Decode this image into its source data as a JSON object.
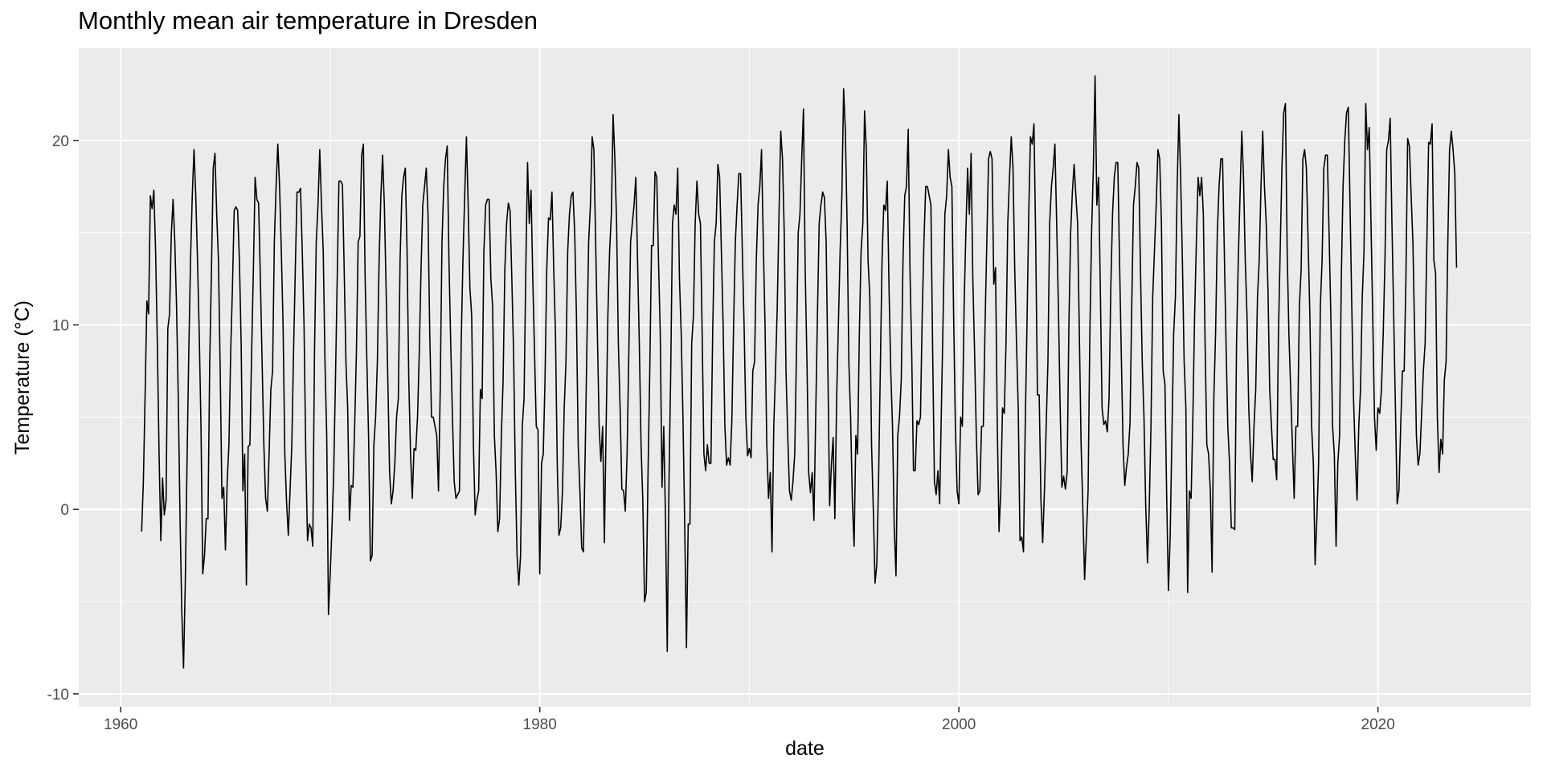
{
  "chart_data": {
    "type": "line",
    "title": "Monthly mean air temperature in Dresden",
    "xlabel": "date",
    "ylabel": "Temperature (°C)",
    "xlim": [
      1958.0,
      2027.3
    ],
    "ylim": [
      -10.7,
      25.0
    ],
    "grid": true,
    "background": "#ebebeb",
    "line_color": "#000000",
    "x_ticks": [
      {
        "value": 1960,
        "label": "1960"
      },
      {
        "value": 1980,
        "label": "1980"
      },
      {
        "value": 2000,
        "label": "2000"
      },
      {
        "value": 2020,
        "label": "2020"
      }
    ],
    "y_ticks": [
      {
        "value": -10,
        "label": "-10"
      },
      {
        "value": 0,
        "label": "0"
      },
      {
        "value": 10,
        "label": "10"
      },
      {
        "value": 20,
        "label": "20"
      }
    ],
    "series": [
      {
        "start_year": 1961,
        "start_month": 1,
        "values": [
          -1.2,
          1.5,
          6.2,
          11.3,
          10.6,
          17.0,
          16.3,
          17.3,
          14.0,
          9.0,
          3.0,
          -1.7,
          1.7,
          -0.3,
          0.5,
          9.8,
          10.6,
          14.9,
          16.8,
          14.5,
          11.0,
          6.0,
          -0.5,
          -5.5,
          -8.6,
          -4.0,
          2.5,
          8.5,
          13.5,
          17.0,
          19.5,
          17.0,
          13.5,
          9.5,
          4.5,
          -3.5,
          -2.5,
          -0.5,
          -0.5,
          8.0,
          13.0,
          18.5,
          19.3,
          16.0,
          13.5,
          7.5,
          0.6,
          1.2,
          -2.2,
          1.5,
          3.5,
          8.5,
          12.0,
          16.2,
          16.4,
          16.2,
          13.5,
          9.0,
          1.0,
          3.0,
          -4.1,
          3.4,
          3.5,
          8.5,
          13.0,
          18.0,
          16.8,
          16.6,
          12.5,
          8.0,
          3.5,
          0.6,
          -0.1,
          3.0,
          6.5,
          7.5,
          14.5,
          17.5,
          19.8,
          17.5,
          14.0,
          10.0,
          3.0,
          0.4,
          -1.4,
          1.0,
          3.5,
          8.5,
          13.0,
          17.2,
          17.2,
          17.4,
          14.0,
          10.0,
          3.0,
          -1.7,
          -0.8,
          -1.0,
          -2.0,
          8.5,
          14.5,
          16.5,
          19.5,
          16.5,
          14.0,
          8.0,
          4.0,
          -5.7,
          -3.5,
          -1.0,
          2.0,
          7.0,
          12.5,
          17.8,
          17.8,
          17.6,
          13.0,
          8.0,
          5.5,
          -0.6,
          1.3,
          1.2,
          4.5,
          8.5,
          14.5,
          14.8,
          19.2,
          19.8,
          12.5,
          8.0,
          3.8,
          -2.8,
          -2.5,
          3.5,
          5.0,
          8.0,
          13.5,
          17.0,
          19.2,
          16.5,
          12.0,
          7.0,
          2.0,
          0.3,
          1.0,
          2.5,
          5.0,
          6.0,
          13.5,
          17.0,
          18.0,
          18.5,
          14.0,
          7.0,
          3.0,
          0.6,
          3.3,
          3.2,
          5.0,
          8.5,
          13.0,
          16.5,
          17.5,
          18.5,
          16.0,
          9.5,
          5.0,
          5.0,
          4.5,
          4.0,
          1.0,
          6.5,
          14.5,
          17.5,
          19.0,
          19.7,
          13.5,
          9.0,
          5.0,
          1.5,
          0.6,
          0.8,
          1.0,
          9.0,
          13.5,
          17.0,
          20.2,
          16.5,
          12.0,
          10.5,
          3.5,
          -0.3,
          0.5,
          1.0,
          6.5,
          6.0,
          14.0,
          16.5,
          16.8,
          16.8,
          12.5,
          11.0,
          4.0,
          2.0,
          -1.2,
          -0.5,
          4.0,
          7.0,
          13.0,
          15.5,
          16.6,
          16.2,
          12.5,
          8.5,
          2.0,
          -2.5,
          -4.1,
          -2.5,
          4.5,
          6.0,
          13.0,
          18.8,
          15.5,
          17.3,
          12.5,
          8.5,
          4.5,
          4.3,
          -3.5,
          2.5,
          3.0,
          7.0,
          13.0,
          15.8,
          15.7,
          17.2,
          13.0,
          9.5,
          2.5,
          -1.4,
          -1.0,
          1.0,
          5.5,
          8.0,
          14.0,
          16.0,
          17.0,
          17.2,
          15.0,
          10.5,
          3.5,
          1.0,
          -2.1,
          -2.3,
          3.0,
          9.0,
          14.5,
          16.5,
          20.2,
          19.5,
          14.5,
          9.5,
          4.5,
          2.6,
          4.5,
          -1.8,
          4.5,
          10.5,
          14.0,
          16.0,
          21.4,
          19.0,
          15.5,
          9.0,
          5.5,
          1.1,
          1.0,
          -0.1,
          3.0,
          8.5,
          14.5,
          15.5,
          16.5,
          18.0,
          13.5,
          9.0,
          3.5,
          0.5,
          -5.0,
          -4.5,
          2.0,
          7.5,
          14.3,
          14.3,
          18.3,
          18.0,
          13.5,
          9.5,
          1.2,
          4.5,
          -0.5,
          -7.7,
          1.5,
          7.5,
          15.5,
          16.5,
          16.0,
          18.5,
          12.5,
          9.5,
          5.0,
          -0.8,
          -7.5,
          -0.8,
          -0.8,
          9.0,
          10.5,
          15.5,
          17.8,
          16.0,
          15.5,
          9.5,
          3.0,
          2.1,
          3.5,
          2.5,
          2.5,
          9.5,
          14.5,
          15.5,
          18.7,
          18.0,
          14.0,
          10.0,
          4.5,
          2.4,
          2.8,
          2.4,
          4.8,
          10.0,
          14.5,
          16.5,
          18.2,
          18.2,
          14.0,
          10.0,
          5.0,
          2.9,
          3.3,
          2.8,
          7.5,
          8.0,
          13.5,
          16.5,
          17.5,
          19.5,
          14.5,
          10.0,
          3.5,
          0.6,
          2.0,
          -2.3,
          4.5,
          7.5,
          11.0,
          16.0,
          20.5,
          19.0,
          15.0,
          7.5,
          4.0,
          1.0,
          0.5,
          1.5,
          3.0,
          8.5,
          15.0,
          16.0,
          19.0,
          21.7,
          13.0,
          8.0,
          2.0,
          0.9,
          2.0,
          -0.6,
          5.0,
          10.5,
          15.5,
          16.5,
          17.2,
          16.9,
          14.5,
          7.5,
          0.2,
          2.4,
          3.9,
          -0.5,
          6.0,
          10.0,
          14.0,
          17.0,
          22.8,
          20.5,
          15.5,
          8.0,
          5.0,
          0.5,
          -2.0,
          4.0,
          3.0,
          9.5,
          14.0,
          15.5,
          21.6,
          19.5,
          13.5,
          11.5,
          3.5,
          0.0,
          -4.0,
          -3.0,
          1.5,
          7.5,
          13.5,
          16.5,
          16.2,
          17.8,
          12.0,
          7.5,
          4.5,
          -1.0,
          -3.6,
          4.0,
          5.0,
          7.0,
          13.5,
          17.0,
          17.5,
          20.6,
          13.0,
          8.5,
          2.1,
          2.1,
          4.8,
          4.6,
          5.0,
          10.5,
          14.5,
          17.5,
          17.5,
          17.0,
          16.5,
          8.5,
          1.5,
          0.8,
          2.1,
          0.3,
          5.5,
          10.5,
          16.0,
          17.0,
          19.5,
          18.0,
          17.5,
          10.5,
          4.5,
          1.0,
          0.3,
          5.0,
          4.5,
          11.0,
          15.0,
          18.5,
          16.0,
          19.3,
          12.5,
          8.5,
          4.0,
          0.8,
          1.0,
          4.5,
          4.5,
          10.0,
          14.5,
          19.0,
          19.4,
          19.0,
          12.2,
          13.1,
          4.5,
          -1.2,
          1.0,
          5.5,
          5.2,
          9.0,
          15.5,
          18.0,
          20.2,
          18.5,
          13.0,
          9.0,
          5.5,
          -1.7,
          -1.5,
          -2.3,
          4.5,
          10.0,
          16.0,
          20.2,
          19.8,
          20.9,
          14.5,
          6.2,
          6.2,
          0.5,
          -1.8,
          1.0,
          4.5,
          8.0,
          15.5,
          17.5,
          18.5,
          19.8,
          15.5,
          11.0,
          5.5,
          1.2,
          1.8,
          1.1,
          2.0,
          10.0,
          15.0,
          17.2,
          18.7,
          17.0,
          15.5,
          9.5,
          3.5,
          0.0,
          -3.8,
          -1.5,
          1.0,
          9.5,
          15.0,
          18.5,
          23.5,
          16.5,
          18.0,
          12.0,
          5.5,
          4.6,
          4.8,
          4.2,
          6.0,
          12.0,
          16.0,
          18.0,
          18.8,
          18.8,
          13.5,
          8.5,
          3.5,
          1.3,
          2.3,
          3.0,
          4.7,
          11.0,
          16.5,
          17.5,
          18.8,
          18.5,
          13.0,
          8.0,
          5.0,
          0.2,
          -2.9,
          0.0,
          4.5,
          11.5,
          14.0,
          16.5,
          19.5,
          19.0,
          15.5,
          7.5,
          6.8,
          0.7,
          -4.4,
          -1.5,
          4.0,
          9.5,
          11.5,
          17.5,
          21.4,
          18.0,
          13.5,
          8.0,
          5.5,
          -4.5,
          1.0,
          0.6,
          5.0,
          10.5,
          14.5,
          18.0,
          17.0,
          18.0,
          16.0,
          9.0,
          3.5,
          3.0,
          1.0,
          -3.4,
          6.0,
          9.5,
          15.0,
          17.5,
          19.0,
          19.0,
          14.0,
          9.0,
          4.5,
          2.5,
          -1.0,
          -1.0,
          -1.1,
          9.0,
          13.5,
          17.0,
          20.5,
          18.0,
          13.5,
          10.5,
          5.5,
          3.0,
          1.5,
          4.5,
          6.5,
          11.5,
          13.5,
          17.5,
          20.5,
          17.5,
          15.5,
          12.0,
          6.5,
          4.5,
          2.7,
          2.7,
          1.6,
          9.5,
          14.0,
          18.5,
          21.5,
          22.0,
          14.0,
          9.5,
          6.5,
          3.5,
          0.6,
          4.5,
          4.5,
          11.0,
          13.0,
          19.0,
          19.5,
          18.5,
          14.5,
          10.5,
          4.5,
          2.5,
          -3.0,
          -0.5,
          2.5,
          11.0,
          13.5,
          18.5,
          19.2,
          19.2,
          15.0,
          10.5,
          4.5,
          3.0,
          -2.0,
          2.5,
          4.0,
          12.5,
          17.5,
          20.0,
          21.5,
          21.8,
          16.5,
          11.0,
          6.0,
          3.0,
          0.5,
          4.5,
          6.5,
          11.5,
          14.0,
          22.0,
          19.5,
          20.7,
          15.5,
          10.5,
          5.0,
          3.2,
          5.5,
          5.2,
          6.5,
          9.5,
          13.5,
          19.5,
          20.0,
          21.2,
          15.5,
          10.5,
          5.5,
          0.3,
          1.0,
          4.5,
          7.5,
          7.5,
          12.5,
          20.1,
          19.7,
          17.0,
          14.5,
          9.5,
          4.0,
          2.4,
          3.0,
          5.2,
          7.5,
          9.0,
          14.5,
          19.9,
          19.8,
          20.9,
          13.5,
          12.8,
          5.0,
          2.0,
          3.8,
          3.0,
          7.0,
          8.0,
          14.5,
          19.5,
          20.5,
          19.5,
          18.2,
          13.1
        ]
      }
    ]
  }
}
